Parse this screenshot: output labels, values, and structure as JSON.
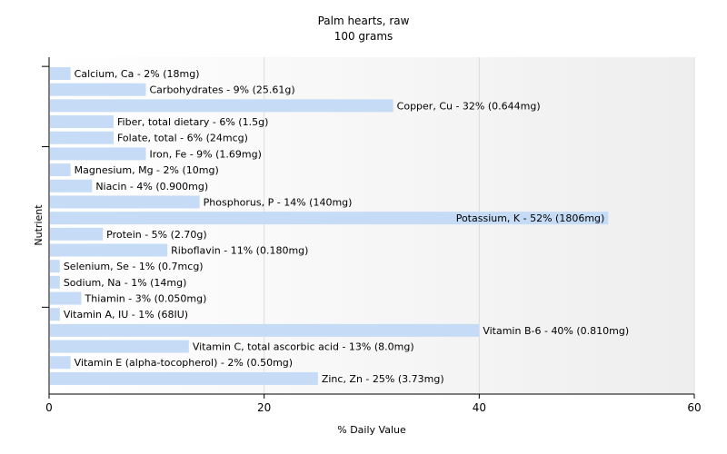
{
  "chart_data": {
    "type": "bar",
    "orientation": "horizontal",
    "title": "Palm hearts, raw",
    "subtitle": "100 grams",
    "xlabel": "% Daily Value",
    "ylabel": "Nutrient",
    "xlim": [
      0,
      60
    ],
    "xticks": [
      0,
      20,
      40,
      60
    ],
    "grid": true,
    "bar_color": "#c6dcf6",
    "categories": [
      "Calcium, Ca - 2% (18mg)",
      "Carbohydrates - 9% (25.61g)",
      "Copper, Cu - 32% (0.644mg)",
      "Fiber, total dietary - 6% (1.5g)",
      "Folate, total - 6% (24mcg)",
      "Iron, Fe - 9% (1.69mg)",
      "Magnesium, Mg - 2% (10mg)",
      "Niacin - 4% (0.900mg)",
      "Phosphorus, P - 14% (140mg)",
      "Potassium, K - 52% (1806mg)",
      "Protein - 5% (2.70g)",
      "Riboflavin - 11% (0.180mg)",
      "Selenium, Se - 1% (0.7mcg)",
      "Sodium, Na - 1% (14mg)",
      "Thiamin - 3% (0.050mg)",
      "Vitamin A, IU - 1% (68IU)",
      "Vitamin B-6 - 40% (0.810mg)",
      "Vitamin C, total ascorbic acid - 13% (8.0mg)",
      "Vitamin E (alpha-tocopherol) - 2% (0.50mg)",
      "Zinc, Zn - 25% (3.73mg)"
    ],
    "values": [
      2,
      9,
      32,
      6,
      6,
      9,
      2,
      4,
      14,
      52,
      5,
      11,
      1,
      1,
      3,
      1,
      40,
      13,
      2,
      25
    ]
  }
}
